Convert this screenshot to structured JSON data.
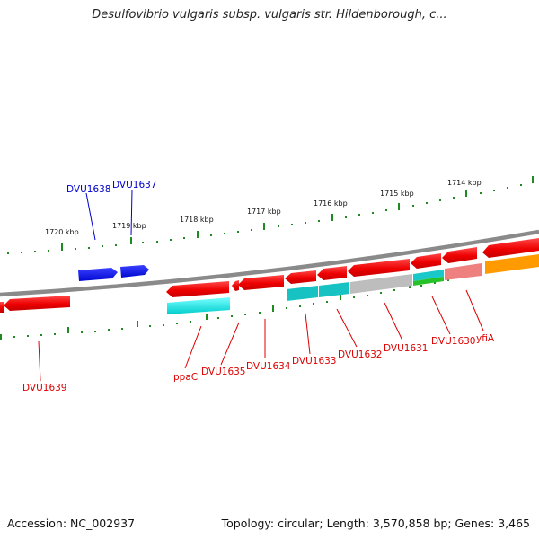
{
  "title": "Desulfovibrio vulgaris subsp. vulgaris str. Hildenborough, c...",
  "footer": {
    "accession": "Accession: NC_002937",
    "topology": "Topology: circular; Length: 3,570,858 bp; Genes: 3,465"
  },
  "ticks": [
    "1720 kbp",
    "1719 kbp",
    "1718 kbp",
    "1717 kbp",
    "1716 kbp",
    "1715 kbp",
    "1714 kbp"
  ],
  "genes_forward": [
    "DVU1638",
    "DVU1637"
  ],
  "genes_reverse": [
    "DVU1639",
    "ppaC",
    "DVU1635",
    "DVU1634",
    "DVU1633",
    "DVU1632",
    "DVU1631",
    "DVU1630",
    "yfiA"
  ],
  "colors": {
    "forward": "#0a10e6",
    "reverse": "#ee0000",
    "backbone": "#8a8a8a",
    "tick": "#1f8a1f"
  }
}
